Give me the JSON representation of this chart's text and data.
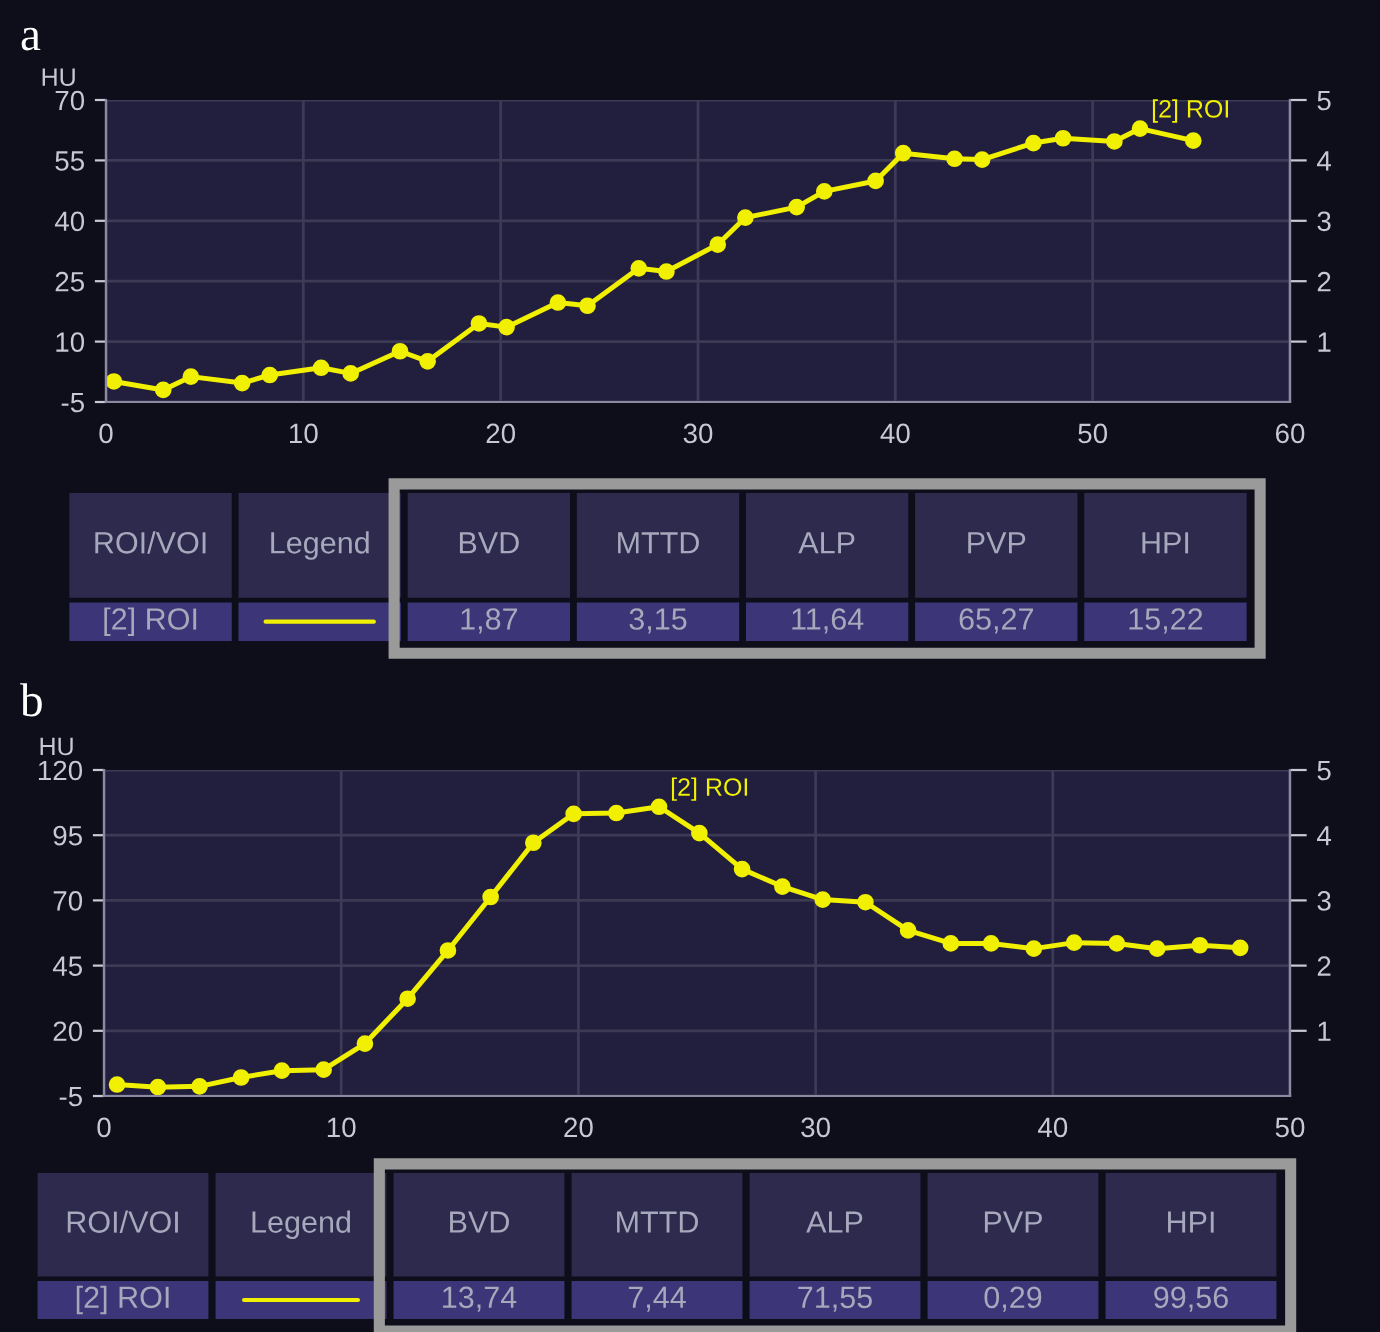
{
  "chart_data": [
    {
      "type": "line",
      "title": "a",
      "ylabel": "HU",
      "xlim": [
        0,
        60
      ],
      "xticks": [
        0,
        10,
        20,
        30,
        40,
        50,
        60
      ],
      "ylim": [
        -5,
        70
      ],
      "yticks": [
        -5,
        10,
        25,
        40,
        55,
        70
      ],
      "y2lim": [
        0,
        5
      ],
      "y2ticks": [
        1,
        2,
        3,
        4,
        5
      ],
      "grid": true,
      "marker": "circle",
      "line_style": "solid",
      "series": [
        {
          "name": "[2] ROI",
          "color": "#f0f000",
          "x": [
            0.4,
            2.9,
            4.3,
            6.9,
            8.3,
            10.9,
            12.4,
            14.9,
            16.3,
            18.9,
            20.3,
            22.9,
            24.4,
            27.0,
            28.4,
            31.0,
            32.4,
            35.0,
            36.4,
            39.0,
            40.4,
            43.0,
            44.4,
            47.0,
            48.5,
            51.1,
            52.4,
            55.1
          ],
          "values": [
            0.1,
            -2.0,
            1.3,
            -0.3,
            1.7,
            3.5,
            2.1,
            7.6,
            5.1,
            14.5,
            13.6,
            19.7,
            18.9,
            28.2,
            27.4,
            34.1,
            40.8,
            43.4,
            47.3,
            49.9,
            56.8,
            55.4,
            55.2,
            59.3,
            60.5,
            59.7,
            62.9,
            59.9
          ]
        }
      ],
      "annotations": [
        "ROI/VOI",
        "Legend",
        "BVD",
        "MTTD",
        "ALP",
        "PVP",
        "HPI",
        "[2] ROI",
        "1,87",
        "3,15",
        "11,64",
        "65,27",
        "15,22"
      ]
    },
    {
      "type": "line",
      "title": "b",
      "ylabel": "HU",
      "xlim": [
        0,
        50
      ],
      "xticks": [
        0,
        10,
        20,
        30,
        40,
        50
      ],
      "ylim": [
        -5,
        120
      ],
      "yticks": [
        -5,
        20,
        45,
        70,
        95,
        120
      ],
      "y2lim": [
        0,
        5
      ],
      "y2ticks": [
        1,
        2,
        3,
        4,
        5
      ],
      "grid": true,
      "marker": "circle",
      "line_style": "solid",
      "series": [
        {
          "name": "[2] ROI",
          "color": "#f0f000",
          "x": [
            0.55,
            2.27,
            4.03,
            5.78,
            7.5,
            9.26,
            11.0,
            12.8,
            14.5,
            16.3,
            18.1,
            19.8,
            21.6,
            23.4,
            25.1,
            26.9,
            28.6,
            30.3,
            32.1,
            33.9,
            35.7,
            37.4,
            39.2,
            40.9,
            42.7,
            44.4,
            46.2,
            47.9
          ],
          "values": [
            -0.6,
            -1.6,
            -1.3,
            2.1,
            4.7,
            5.1,
            15.1,
            32.3,
            50.8,
            71.3,
            92.1,
            103.2,
            103.5,
            105.9,
            95.8,
            82.0,
            75.3,
            70.3,
            69.3,
            58.5,
            53.5,
            53.5,
            51.5,
            53.8,
            53.5,
            51.5,
            52.8,
            51.8
          ]
        }
      ],
      "annotations": [
        "ROI/VOI",
        "Legend",
        "BVD",
        "MTTD",
        "ALP",
        "PVP",
        "HPI",
        "[2] ROI",
        "13,74",
        "7,44",
        "71,55",
        "0,29",
        "99,56"
      ]
    }
  ]
}
